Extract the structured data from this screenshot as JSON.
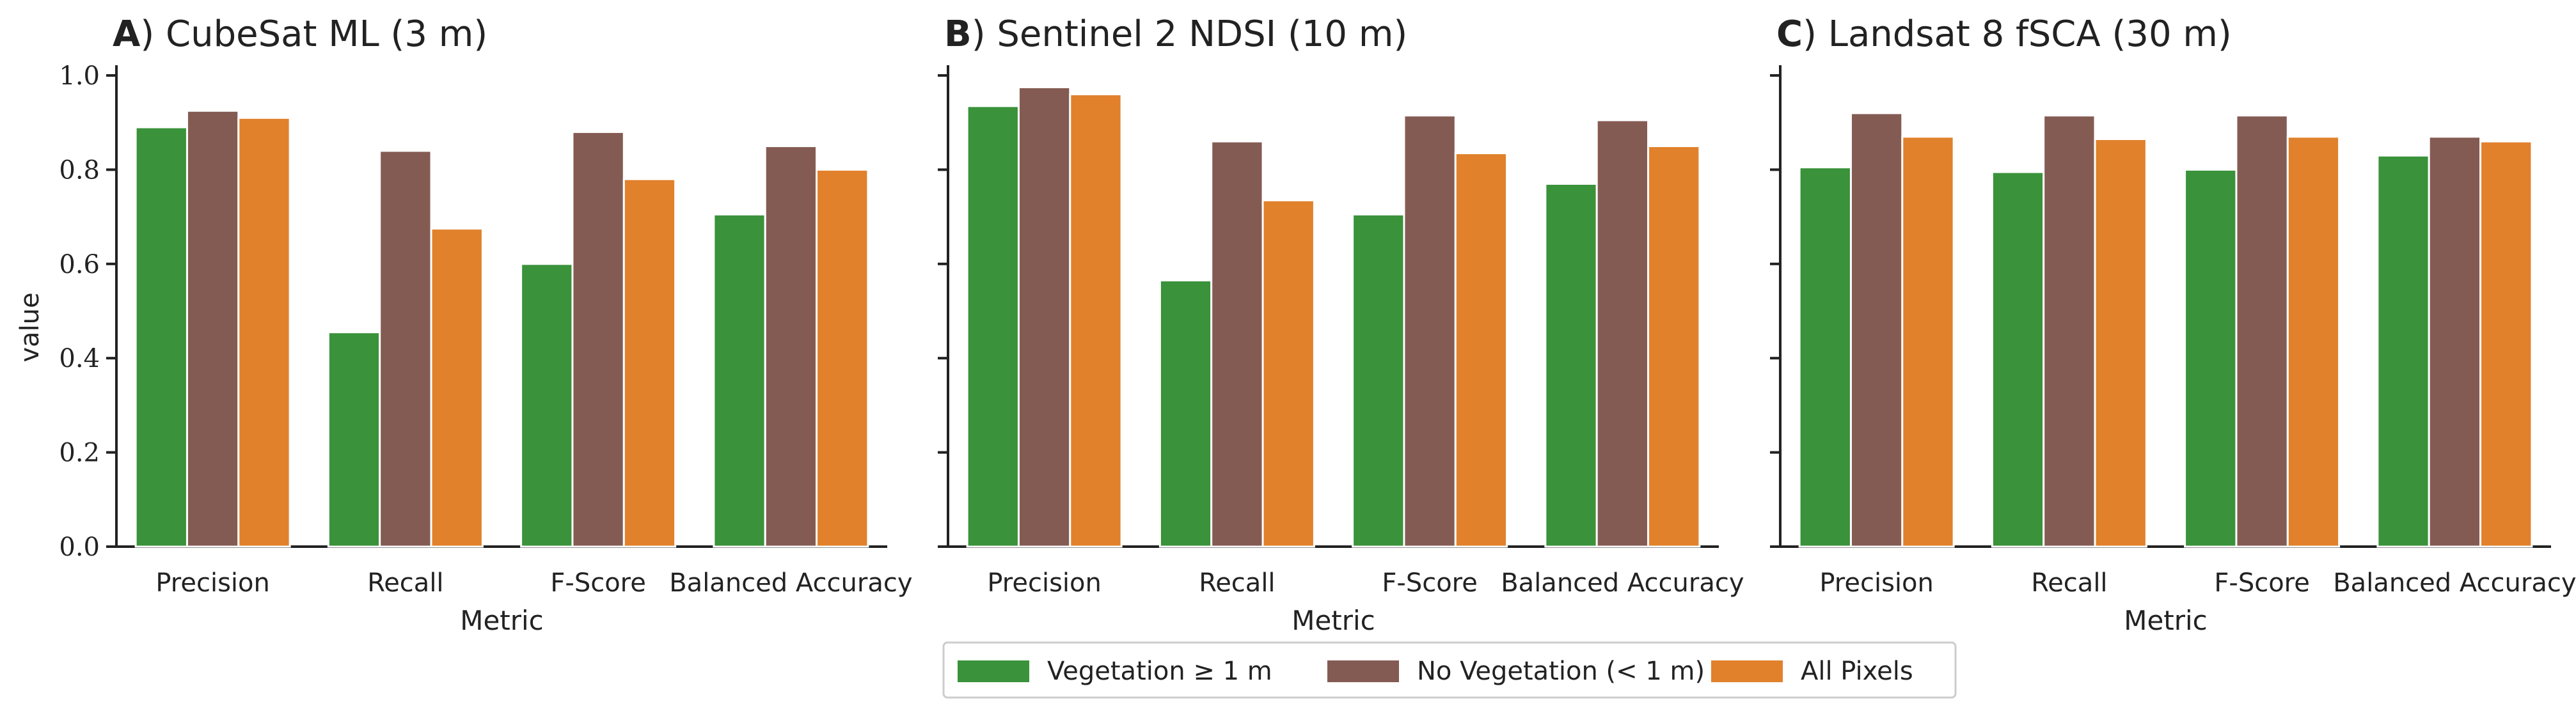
{
  "figure": {
    "ylabel": "value",
    "legend": {
      "placement": "bottom-center",
      "items": [
        {
          "label": "Vegetation ≥ 1 m",
          "color": "#3a923a"
        },
        {
          "label": "No Vegetation (< 1 m)",
          "color": "#845b53"
        },
        {
          "label": "All Pixels",
          "color": "#e1812c"
        }
      ]
    }
  },
  "chart_data": [
    {
      "type": "bar",
      "panel_letter": "A",
      "title": ") CubeSat ML (3 m)",
      "xlabel": "Metric",
      "ylabel": "value",
      "ylim": [
        0,
        1.0
      ],
      "yticks": [
        "0.0",
        "0.2",
        "0.4",
        "0.6",
        "0.8",
        "1.0"
      ],
      "categories": [
        "Precision",
        "Recall",
        "F-Score",
        "Balanced Accuracy"
      ],
      "series": [
        {
          "name": "Vegetation ≥ 1 m",
          "values": [
            0.89,
            0.455,
            0.6,
            0.705
          ]
        },
        {
          "name": "No Vegetation (< 1 m)",
          "values": [
            0.925,
            0.84,
            0.88,
            0.85
          ]
        },
        {
          "name": "All Pixels",
          "values": [
            0.91,
            0.675,
            0.78,
            0.8
          ]
        }
      ]
    },
    {
      "type": "bar",
      "panel_letter": "B",
      "title": ") Sentinel 2 NDSI (10 m)",
      "xlabel": "Metric",
      "ylabel": "",
      "ylim": [
        0,
        1.0
      ],
      "yticks": [
        "0.0",
        "0.2",
        "0.4",
        "0.6",
        "0.8",
        "1.0"
      ],
      "categories": [
        "Precision",
        "Recall",
        "F-Score",
        "Balanced Accuracy"
      ],
      "series": [
        {
          "name": "Vegetation ≥ 1 m",
          "values": [
            0.935,
            0.565,
            0.705,
            0.77
          ]
        },
        {
          "name": "No Vegetation (< 1 m)",
          "values": [
            0.975,
            0.86,
            0.915,
            0.905
          ]
        },
        {
          "name": "All Pixels",
          "values": [
            0.96,
            0.735,
            0.835,
            0.85
          ]
        }
      ]
    },
    {
      "type": "bar",
      "panel_letter": "C",
      "title": ") Landsat 8 fSCA (30 m)",
      "xlabel": "Metric",
      "ylabel": "",
      "ylim": [
        0,
        1.0
      ],
      "yticks": [
        "0.0",
        "0.2",
        "0.4",
        "0.6",
        "0.8",
        "1.0"
      ],
      "categories": [
        "Precision",
        "Recall",
        "F-Score",
        "Balanced Accuracy"
      ],
      "series": [
        {
          "name": "Vegetation ≥ 1 m",
          "values": [
            0.805,
            0.795,
            0.8,
            0.83
          ]
        },
        {
          "name": "No Vegetation (< 1 m)",
          "values": [
            0.92,
            0.915,
            0.915,
            0.87
          ]
        },
        {
          "name": "All Pixels",
          "values": [
            0.87,
            0.865,
            0.87,
            0.86
          ]
        }
      ]
    }
  ]
}
